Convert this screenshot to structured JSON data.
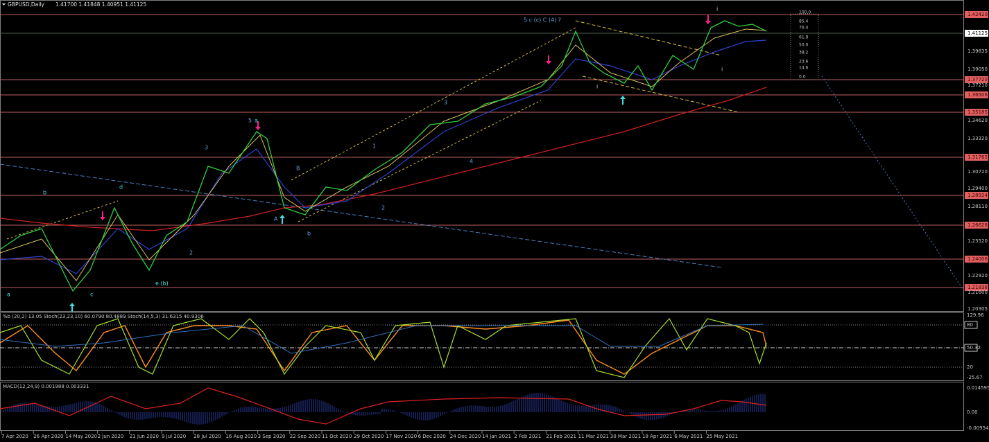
{
  "header": {
    "symbol": "GBPUSD,Daily",
    "ohlc": "1.41700 1.41848 1.40951 1.41125"
  },
  "price_axis": {
    "labels": [
      "1.42420",
      "1.41125",
      "1.39835",
      "1.39050",
      "1.37720",
      "1.37210",
      "1.36506",
      "1.35185",
      "1.34620",
      "1.33320",
      "1.31765",
      "1.30720",
      "1.29400",
      "1.28924",
      "1.28110",
      "1.26628",
      "1.25520",
      "1.24006",
      "1.22920",
      "1.21836",
      "1.21600",
      "1.20305"
    ]
  },
  "fib_levels": [
    "100.0",
    "85.4",
    "76.4",
    "61.8",
    "50.0",
    "38.2",
    "23.6",
    "14.6",
    "0.0"
  ],
  "wave_labels": [
    "5 c (c) C (4) ?",
    "i",
    "5",
    "a",
    "3",
    "B",
    "A",
    "b",
    "d",
    "b",
    "a",
    "c",
    "e (b)",
    "2",
    "3",
    "4",
    "2",
    "1",
    "i",
    "i"
  ],
  "oscillator": {
    "title": "%b (20,2) 13.05  Stoch(23,23,10) 60.0790 80.4889  Stoch(14,5,3) 31.6315 40.9306",
    "axis_labels": [
      "129.96",
      "80",
      "50.32",
      "20",
      "-25.67"
    ]
  },
  "macd": {
    "title": "MACD(12,24,9) 0.001988 0.003331",
    "axis_labels": [
      "0.014595",
      "0.00",
      "-0.009549"
    ]
  },
  "time_axis": [
    "7 Apr 2020",
    "26 Apr 2020",
    "14 May 2020",
    "2 Jun 2020",
    "21 Jun 2020",
    "9 Jul 2020",
    "28 Jul 2020",
    "16 Aug 2020",
    "3 Sep 2020",
    "22 Sep 2020",
    "11 Oct 2020",
    "29 Oct 2020",
    "17 Nov 2020",
    "6 Dec 2020",
    "24 Dec 2020",
    "14 Jan 2021",
    "2 Feb 2021",
    "21 Feb 2021",
    "11 Mar 2021",
    "30 Mar 2021",
    "18 Apr 2021",
    "6 May 2021",
    "25 May 2021"
  ]
}
